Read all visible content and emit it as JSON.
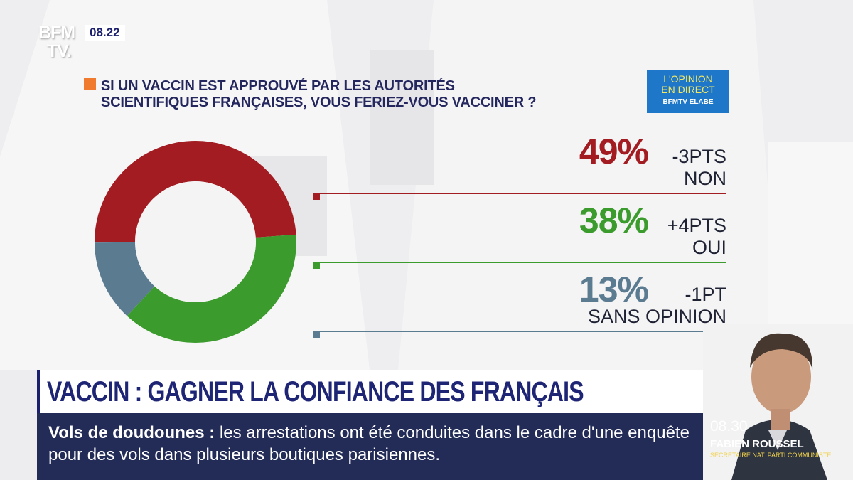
{
  "channel": {
    "logo_line1": "BFM",
    "logo_line2": "TV.",
    "clock": "08.22"
  },
  "question": {
    "line1": "SI UN VACCIN EST APPROUVÉ PAR LES AUTORITÉS",
    "line2": "SCIENTIFIQUES FRANÇAISES, VOUS FERIEZ-VOUS VACCINER ?"
  },
  "badge": {
    "line1": "L'OPINION",
    "line2": "EN DIRECT",
    "line3": "BFMTV ELABE"
  },
  "chart_data": {
    "type": "pie",
    "title": "SI UN VACCIN EST APPROUVÉ PAR LES AUTORITÉS SCIENTIFIQUES FRANÇAISES, VOUS FERIEZ-VOUS VACCINER ?",
    "categories": [
      "NON",
      "OUI",
      "SANS OPINION"
    ],
    "values": [
      49,
      38,
      13
    ],
    "value_labels": [
      "49%",
      "38%",
      "13%"
    ],
    "changes": [
      "-3PTS",
      "+4PTS",
      "-1PT"
    ],
    "colors": [
      "#a21c21",
      "#3c9b2d",
      "#5b7b91"
    ],
    "donut": true
  },
  "banner": {
    "title": "VACCIN : GAGNER LA CONFIANCE DES FRANÇAIS"
  },
  "ticker": {
    "topic": "Vols de doudounes :",
    "text": "les arrestations ont été conduites dans le cadre d'une enquête pour des vols dans plusieurs boutiques parisiennes."
  },
  "guest": {
    "time": "08.30",
    "name": "FABIEN ROUSSEL",
    "role": "SECRETAIRE NAT. PARTI COMMUNISTE"
  }
}
